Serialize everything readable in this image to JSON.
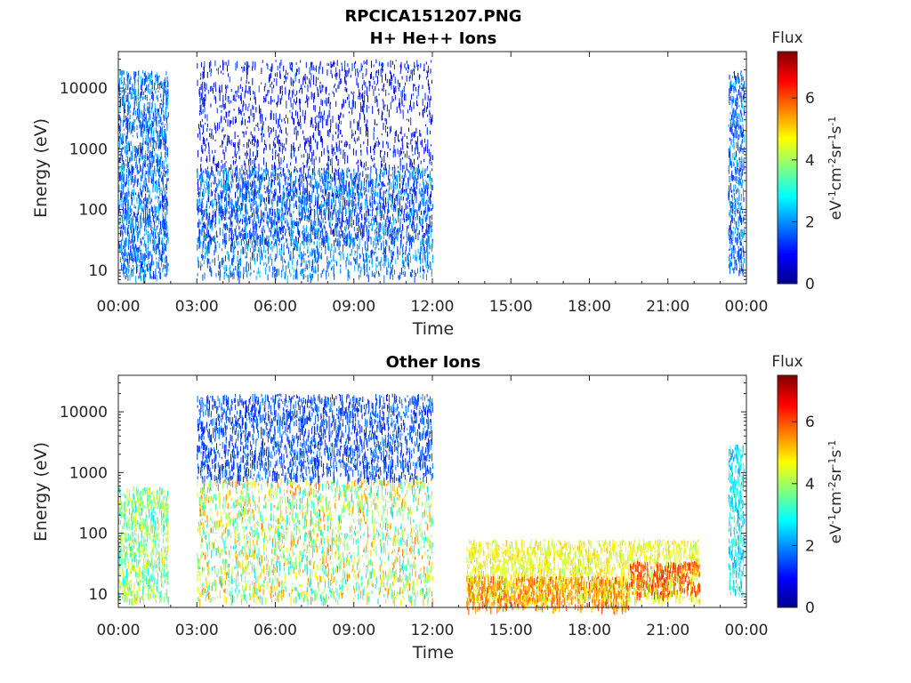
{
  "figure": {
    "title_line1": "RPCICA151207.PNG",
    "title_line2": "H+ He++ Ions",
    "title_panel2": "Other Ions"
  },
  "chart_data": [
    {
      "type": "heatmap",
      "name": "H+ He++ Ions",
      "title": "H+ He++ Ions",
      "xlabel": "Time",
      "ylabel": "Energy (eV)",
      "x_ticks": [
        "00:00",
        "03:00",
        "06:00",
        "09:00",
        "12:00",
        "15:00",
        "18:00",
        "21:00",
        "00:00"
      ],
      "xlim_hours": [
        0,
        24
      ],
      "y_scale": "log",
      "y_ticks": [
        "10",
        "100",
        "1000",
        "10000"
      ],
      "ylim": [
        6,
        40000
      ],
      "colorbar": {
        "label": "Flux",
        "units": "eV-1cm-2sr-1s-1",
        "range": [
          0,
          7.5
        ],
        "ticks": [
          "0",
          "2",
          "4",
          "6"
        ],
        "colormap": "jet"
      },
      "data_intervals_hours": [
        [
          0.0,
          1.9
        ],
        [
          3.0,
          12.0
        ],
        [
          23.3,
          23.9
        ]
      ],
      "gap_intervals_hours": [
        [
          1.9,
          3.0
        ],
        [
          12.0,
          23.3
        ]
      ],
      "regions": [
        {
          "t": [
            0.0,
            1.9
          ],
          "e": [
            8,
            20000
          ],
          "flux": [
            1.0,
            2.5
          ]
        },
        {
          "t": [
            3.0,
            12.0
          ],
          "e": [
            30,
            30000
          ],
          "flux": [
            0.5,
            1.5
          ]
        },
        {
          "t": [
            3.0,
            12.0
          ],
          "e": [
            8,
            500
          ],
          "flux": [
            1.2,
            2.5
          ]
        },
        {
          "t": [
            23.3,
            23.9
          ],
          "e": [
            10,
            20000
          ],
          "flux": [
            1.0,
            2.5
          ]
        }
      ]
    },
    {
      "type": "heatmap",
      "name": "Other Ions",
      "title": "Other Ions",
      "xlabel": "Time",
      "ylabel": "Energy (eV)",
      "x_ticks": [
        "00:00",
        "03:00",
        "06:00",
        "09:00",
        "12:00",
        "15:00",
        "18:00",
        "21:00",
        "00:00"
      ],
      "xlim_hours": [
        0,
        24
      ],
      "y_scale": "log",
      "y_ticks": [
        "10",
        "100",
        "1000",
        "10000"
      ],
      "ylim": [
        6,
        40000
      ],
      "colorbar": {
        "label": "Flux",
        "units": "eV-1cm-2sr-1s-1",
        "range": [
          0,
          7.5
        ],
        "ticks": [
          "0",
          "2",
          "4",
          "6"
        ],
        "colormap": "jet"
      },
      "data_intervals_hours": [
        [
          0.0,
          1.9
        ],
        [
          3.0,
          12.0
        ],
        [
          13.3,
          22.2
        ],
        [
          23.3,
          23.9
        ]
      ],
      "gap_intervals_hours": [
        [
          1.9,
          3.0
        ],
        [
          12.0,
          13.3
        ],
        [
          22.2,
          23.3
        ]
      ],
      "regions": [
        {
          "t": [
            0.0,
            1.9
          ],
          "e": [
            8,
            600
          ],
          "flux": [
            2.5,
            5.0
          ]
        },
        {
          "t": [
            3.0,
            12.0
          ],
          "e": [
            8,
            800
          ],
          "flux": [
            2.5,
            5.8
          ]
        },
        {
          "t": [
            3.0,
            12.0
          ],
          "e": [
            800,
            20000
          ],
          "flux": [
            1.0,
            2.0
          ]
        },
        {
          "t": [
            13.3,
            22.2
          ],
          "e": [
            8,
            80
          ],
          "flux": [
            4.0,
            5.2
          ]
        },
        {
          "t": [
            13.3,
            19.5
          ],
          "e": [
            6,
            20
          ],
          "flux": [
            5.0,
            6.2
          ]
        },
        {
          "t": [
            19.5,
            22.2
          ],
          "e": [
            10,
            35
          ],
          "flux": [
            5.5,
            6.5
          ]
        },
        {
          "t": [
            23.3,
            23.9
          ],
          "e": [
            10,
            3000
          ],
          "flux": [
            2.0,
            3.5
          ]
        }
      ]
    }
  ]
}
